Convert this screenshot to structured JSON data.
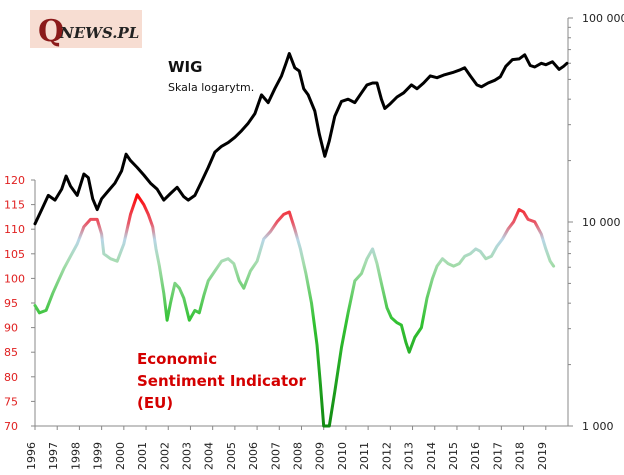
{
  "logo": {
    "q": "Q",
    "rest": "NEWS.PL"
  },
  "chart_data": {
    "type": "line",
    "x": {
      "min": 1996,
      "max": 2020,
      "tick_labels": [
        "1996",
        "1997",
        "1998",
        "1999",
        "2000",
        "2001",
        "2002",
        "2003",
        "2004",
        "2005",
        "2006",
        "2007",
        "2008",
        "2009",
        "2010",
        "2011",
        "2012",
        "2013",
        "2014",
        "2015",
        "2016",
        "2017",
        "2018",
        "2019"
      ]
    },
    "y_left": {
      "min": 70,
      "max": 120,
      "tick_labels": [
        "120",
        "115",
        "110",
        "105",
        "100",
        "95",
        "90",
        "85",
        "80",
        "75",
        "70"
      ]
    },
    "y_right": {
      "scale": "log",
      "min": 1000,
      "max": 100000,
      "tick_labels": [
        "100 000",
        "10 000",
        "1 000"
      ]
    },
    "series": [
      {
        "name": "WIG",
        "subtitle": "Skala logarytm.",
        "axis": "right",
        "color": "#000000",
        "points": [
          [
            1996.0,
            9800
          ],
          [
            1996.3,
            11500
          ],
          [
            1996.6,
            13500
          ],
          [
            1996.9,
            12800
          ],
          [
            1997.2,
            14500
          ],
          [
            1997.4,
            16800
          ],
          [
            1997.6,
            15000
          ],
          [
            1997.9,
            13500
          ],
          [
            1998.2,
            17200
          ],
          [
            1998.4,
            16500
          ],
          [
            1998.6,
            13000
          ],
          [
            1998.8,
            11500
          ],
          [
            1999.0,
            13000
          ],
          [
            1999.3,
            14200
          ],
          [
            1999.6,
            15500
          ],
          [
            1999.9,
            17800
          ],
          [
            2000.1,
            21500
          ],
          [
            2000.3,
            20000
          ],
          [
            2000.6,
            18500
          ],
          [
            2000.9,
            17000
          ],
          [
            2001.2,
            15500
          ],
          [
            2001.5,
            14500
          ],
          [
            2001.8,
            12800
          ],
          [
            2002.1,
            13800
          ],
          [
            2002.4,
            14800
          ],
          [
            2002.7,
            13300
          ],
          [
            2002.9,
            12800
          ],
          [
            2003.2,
            13500
          ],
          [
            2003.5,
            15800
          ],
          [
            2003.8,
            18500
          ],
          [
            2004.1,
            22000
          ],
          [
            2004.4,
            23500
          ],
          [
            2004.7,
            24500
          ],
          [
            2005.0,
            26000
          ],
          [
            2005.3,
            28000
          ],
          [
            2005.6,
            30500
          ],
          [
            2005.9,
            34000
          ],
          [
            2006.2,
            42000
          ],
          [
            2006.5,
            38500
          ],
          [
            2006.8,
            45000
          ],
          [
            2007.1,
            52000
          ],
          [
            2007.3,
            60000
          ],
          [
            2007.45,
            67000
          ],
          [
            2007.7,
            57000
          ],
          [
            2007.9,
            55000
          ],
          [
            2008.1,
            45000
          ],
          [
            2008.3,
            42000
          ],
          [
            2008.6,
            35000
          ],
          [
            2008.8,
            27000
          ],
          [
            2009.05,
            21000
          ],
          [
            2009.25,
            25000
          ],
          [
            2009.5,
            33000
          ],
          [
            2009.8,
            39000
          ],
          [
            2010.1,
            40000
          ],
          [
            2010.4,
            38500
          ],
          [
            2010.7,
            43000
          ],
          [
            2010.95,
            47000
          ],
          [
            2011.2,
            48000
          ],
          [
            2011.4,
            48000
          ],
          [
            2011.6,
            40000
          ],
          [
            2011.75,
            36000
          ],
          [
            2012.0,
            38000
          ],
          [
            2012.3,
            41000
          ],
          [
            2012.6,
            43000
          ],
          [
            2012.95,
            47000
          ],
          [
            2013.2,
            45000
          ],
          [
            2013.5,
            48000
          ],
          [
            2013.8,
            52000
          ],
          [
            2014.1,
            51000
          ],
          [
            2014.4,
            52500
          ],
          [
            2014.8,
            54000
          ],
          [
            2015.1,
            55500
          ],
          [
            2015.35,
            57000
          ],
          [
            2015.6,
            52000
          ],
          [
            2015.9,
            47000
          ],
          [
            2016.1,
            46000
          ],
          [
            2016.4,
            48000
          ],
          [
            2016.7,
            49500
          ],
          [
            2016.95,
            51500
          ],
          [
            2017.2,
            58000
          ],
          [
            2017.5,
            62500
          ],
          [
            2017.8,
            63000
          ],
          [
            2018.05,
            66000
          ],
          [
            2018.3,
            58500
          ],
          [
            2018.5,
            57500
          ],
          [
            2018.8,
            60000
          ],
          [
            2019.0,
            59000
          ],
          [
            2019.3,
            61000
          ],
          [
            2019.6,
            56000
          ],
          [
            2019.8,
            58000
          ],
          [
            2019.95,
            60000
          ]
        ]
      },
      {
        "name": "Economic Sentiment Indicator (EU)",
        "label_lines": [
          "Economic",
          "Sentiment Indicator",
          "(EU)"
        ],
        "axis": "left",
        "color": "gradient: red high, light blue mid, green low",
        "points": [
          [
            1996.0,
            94.5
          ],
          [
            1996.2,
            93.0
          ],
          [
            1996.5,
            93.5
          ],
          [
            1996.8,
            97.0
          ],
          [
            1997.0,
            99.0
          ],
          [
            1997.3,
            102.0
          ],
          [
            1997.6,
            104.5
          ],
          [
            1997.9,
            107.0
          ],
          [
            1998.2,
            110.5
          ],
          [
            1998.5,
            112.0
          ],
          [
            1998.8,
            112.0
          ],
          [
            1999.0,
            109.0
          ],
          [
            1999.1,
            105.0
          ],
          [
            1999.4,
            104.0
          ],
          [
            1999.7,
            103.5
          ],
          [
            2000.0,
            107.0
          ],
          [
            2000.3,
            113.0
          ],
          [
            2000.6,
            117.0
          ],
          [
            2000.9,
            115.0
          ],
          [
            2001.1,
            113.0
          ],
          [
            2001.3,
            110.5
          ],
          [
            2001.45,
            106.0
          ],
          [
            2001.6,
            102.5
          ],
          [
            2001.8,
            97.0
          ],
          [
            2001.95,
            91.5
          ],
          [
            2002.1,
            95.0
          ],
          [
            2002.3,
            99.0
          ],
          [
            2002.5,
            98.0
          ],
          [
            2002.7,
            96.0
          ],
          [
            2002.95,
            91.5
          ],
          [
            2003.2,
            93.5
          ],
          [
            2003.4,
            93.0
          ],
          [
            2003.6,
            96.5
          ],
          [
            2003.8,
            99.5
          ],
          [
            2004.1,
            101.5
          ],
          [
            2004.4,
            103.5
          ],
          [
            2004.7,
            104.0
          ],
          [
            2004.95,
            103.0
          ],
          [
            2005.2,
            99.5
          ],
          [
            2005.4,
            98.0
          ],
          [
            2005.7,
            101.5
          ],
          [
            2006.0,
            103.5
          ],
          [
            2006.3,
            108.0
          ],
          [
            2006.6,
            109.5
          ],
          [
            2006.9,
            111.5
          ],
          [
            2007.2,
            113.0
          ],
          [
            2007.45,
            113.5
          ],
          [
            2007.7,
            110.0
          ],
          [
            2007.95,
            106.0
          ],
          [
            2008.2,
            101.0
          ],
          [
            2008.45,
            95.0
          ],
          [
            2008.7,
            86.5
          ],
          [
            2008.85,
            78.5
          ],
          [
            2009.0,
            70.0
          ],
          [
            2009.25,
            70.0
          ],
          [
            2009.5,
            77.0
          ],
          [
            2009.8,
            86.0
          ],
          [
            2010.1,
            93.0
          ],
          [
            2010.4,
            99.5
          ],
          [
            2010.7,
            101.0
          ],
          [
            2010.95,
            104.0
          ],
          [
            2011.2,
            106.0
          ],
          [
            2011.4,
            103.0
          ],
          [
            2011.6,
            99.0
          ],
          [
            2011.85,
            94.0
          ],
          [
            2012.05,
            92.0
          ],
          [
            2012.3,
            91.0
          ],
          [
            2012.5,
            90.5
          ],
          [
            2012.7,
            87.0
          ],
          [
            2012.85,
            85.0
          ],
          [
            2013.1,
            88.0
          ],
          [
            2013.4,
            90.0
          ],
          [
            2013.65,
            96.0
          ],
          [
            2013.9,
            100.0
          ],
          [
            2014.1,
            102.5
          ],
          [
            2014.35,
            104.0
          ],
          [
            2014.6,
            103.0
          ],
          [
            2014.85,
            102.5
          ],
          [
            2015.1,
            103.0
          ],
          [
            2015.35,
            104.5
          ],
          [
            2015.6,
            105.0
          ],
          [
            2015.85,
            106.0
          ],
          [
            2016.05,
            105.5
          ],
          [
            2016.3,
            104.0
          ],
          [
            2016.55,
            104.5
          ],
          [
            2016.8,
            106.5
          ],
          [
            2017.05,
            108.0
          ],
          [
            2017.3,
            110.0
          ],
          [
            2017.55,
            111.5
          ],
          [
            2017.8,
            114.0
          ],
          [
            2018.0,
            113.5
          ],
          [
            2018.2,
            112.0
          ],
          [
            2018.5,
            111.5
          ],
          [
            2018.8,
            109.0
          ],
          [
            2019.0,
            106.0
          ],
          [
            2019.2,
            103.5
          ],
          [
            2019.35,
            102.5
          ]
        ]
      }
    ]
  }
}
